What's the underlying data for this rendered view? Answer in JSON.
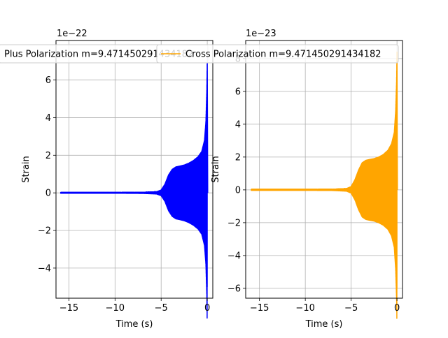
{
  "chart_data": [
    {
      "type": "line",
      "xlabel": "Time (s)",
      "ylabel": "Strain",
      "offset_text": "1e−22",
      "xlim": [
        -16.4,
        0.6
      ],
      "ylim": [
        -5.6,
        8.1
      ],
      "xticks": [
        -15,
        -10,
        -5,
        0
      ],
      "xtick_labels": [
        "−15",
        "−10",
        "−5",
        "0"
      ],
      "yticks": [
        -4,
        -2,
        0,
        2,
        4,
        6
      ],
      "ytick_labels": [
        "−4",
        "−2",
        "0",
        "2",
        "4",
        "6"
      ],
      "grid": true,
      "legend_loc": "upper-right",
      "series": [
        {
          "name": "Plus Polarization m=9.471450291434182",
          "color": "#0000ff",
          "t_start": -15.9,
          "t_end": 0.0,
          "envelope": [
            [
              -15.9,
              0.02
            ],
            [
              -10.0,
              0.02
            ],
            [
              -7.0,
              0.03
            ],
            [
              -5.5,
              0.06
            ],
            [
              -5.0,
              0.15
            ],
            [
              -4.6,
              0.45
            ],
            [
              -4.2,
              0.95
            ],
            [
              -3.8,
              1.25
            ],
            [
              -3.4,
              1.38
            ],
            [
              -3.0,
              1.42
            ],
            [
              -2.5,
              1.48
            ],
            [
              -2.0,
              1.58
            ],
            [
              -1.5,
              1.72
            ],
            [
              -1.0,
              1.92
            ],
            [
              -0.6,
              2.2
            ],
            [
              -0.3,
              2.8
            ],
            [
              -0.15,
              3.8
            ],
            [
              -0.05,
              5.5
            ],
            [
              0.0,
              7.2
            ]
          ],
          "min_value": -5.0
        }
      ]
    },
    {
      "type": "line",
      "xlabel": "Time (s)",
      "ylabel": "Strain",
      "offset_text": "1e−23",
      "xlim": [
        -16.5,
        0.6
      ],
      "ylim": [
        -6.6,
        9.1
      ],
      "xticks": [
        -15,
        -10,
        -5,
        0
      ],
      "xtick_labels": [
        "−15",
        "−10",
        "−5",
        "0"
      ],
      "yticks": [
        -6,
        -4,
        -2,
        0,
        2,
        4,
        6,
        8
      ],
      "ytick_labels": [
        "−6",
        "−4",
        "−2",
        "0",
        "2",
        "4",
        "6",
        "8"
      ],
      "grid": true,
      "legend_loc": "upper-right",
      "series": [
        {
          "name": "Cross Polarization m=9.471450291434182",
          "color": "#ffa500",
          "t_start": -15.9,
          "t_end": 0.0,
          "envelope": [
            [
              -15.9,
              0.03
            ],
            [
              -10.0,
              0.03
            ],
            [
              -7.0,
              0.04
            ],
            [
              -5.5,
              0.08
            ],
            [
              -5.0,
              0.2
            ],
            [
              -4.6,
              0.6
            ],
            [
              -4.2,
              1.2
            ],
            [
              -3.8,
              1.65
            ],
            [
              -3.4,
              1.8
            ],
            [
              -3.0,
              1.85
            ],
            [
              -2.5,
              1.9
            ],
            [
              -2.0,
              2.0
            ],
            [
              -1.5,
              2.15
            ],
            [
              -1.0,
              2.4
            ],
            [
              -0.6,
              2.8
            ],
            [
              -0.3,
              3.5
            ],
            [
              -0.15,
              4.8
            ],
            [
              -0.05,
              6.6
            ],
            [
              0.0,
              8.4
            ]
          ],
          "min_value": -6.0
        }
      ]
    }
  ]
}
